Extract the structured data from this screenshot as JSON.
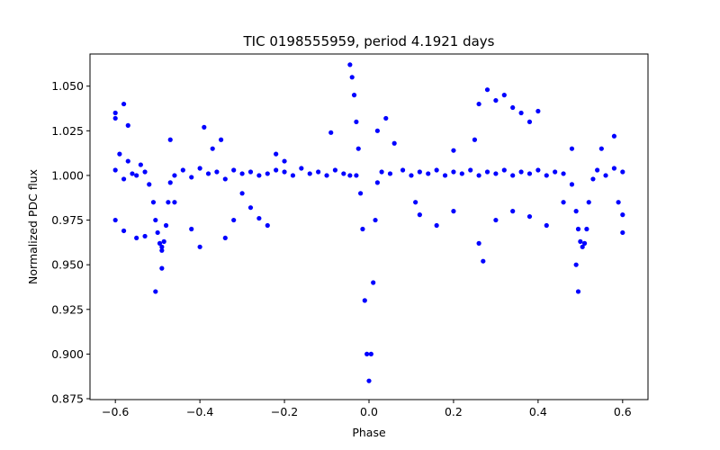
{
  "chart_data": {
    "type": "scatter",
    "title": "TIC 0198555959, period 4.1921 days",
    "xlabel": "Phase",
    "ylabel": "Normalized PDC flux",
    "xlim": [
      -0.66,
      0.66
    ],
    "ylim": [
      0.8745,
      1.068
    ],
    "xticks": [
      -0.6,
      -0.4,
      -0.2,
      0.0,
      0.2,
      0.4,
      0.6
    ],
    "xtick_labels": [
      "−0.6",
      "−0.4",
      "−0.2",
      "0.0",
      "0.2",
      "0.4",
      "0.6"
    ],
    "yticks": [
      0.875,
      0.9,
      0.925,
      0.95,
      0.975,
      1.0,
      1.025,
      1.05
    ],
    "ytick_labels": [
      "0.875",
      "0.900",
      "0.925",
      "0.950",
      "0.975",
      "1.000",
      "1.025",
      "1.050"
    ],
    "grid": false,
    "marker_color": "#0000ff",
    "series": [
      {
        "points": [
          [
            -0.6,
            1.003
          ],
          [
            -0.59,
            1.012
          ],
          [
            -0.58,
            0.998
          ],
          [
            -0.57,
            1.008
          ],
          [
            -0.56,
            1.001
          ],
          [
            -0.55,
            1.0
          ],
          [
            -0.54,
            1.006
          ],
          [
            -0.53,
            1.002
          ],
          [
            -0.52,
            0.995
          ],
          [
            -0.51,
            0.985
          ],
          [
            -0.505,
            0.975
          ],
          [
            -0.5,
            0.968
          ],
          [
            -0.495,
            0.962
          ],
          [
            -0.49,
            0.96
          ],
          [
            -0.485,
            0.963
          ],
          [
            -0.48,
            0.972
          ],
          [
            -0.475,
            0.985
          ],
          [
            -0.47,
            0.996
          ],
          [
            -0.46,
            1.0
          ],
          [
            -0.44,
            1.003
          ],
          [
            -0.42,
            0.999
          ],
          [
            -0.4,
            1.004
          ],
          [
            -0.38,
            1.001
          ],
          [
            -0.36,
            1.002
          ],
          [
            -0.34,
            0.998
          ],
          [
            -0.32,
            1.003
          ],
          [
            -0.3,
            1.001
          ],
          [
            -0.28,
            1.002
          ],
          [
            -0.26,
            1.0
          ],
          [
            -0.24,
            1.001
          ],
          [
            -0.22,
            1.003
          ],
          [
            -0.2,
            1.002
          ],
          [
            -0.18,
            1.0
          ],
          [
            -0.16,
            1.004
          ],
          [
            -0.14,
            1.001
          ],
          [
            -0.12,
            1.002
          ],
          [
            -0.1,
            1.0
          ],
          [
            -0.08,
            1.003
          ],
          [
            -0.06,
            1.001
          ],
          [
            -0.045,
            1.0
          ],
          [
            -0.03,
            1.0
          ],
          [
            -0.02,
            0.99
          ],
          [
            -0.015,
            0.97
          ],
          [
            -0.01,
            0.93
          ],
          [
            -0.005,
            0.9
          ],
          [
            0.0,
            0.885
          ],
          [
            0.005,
            0.9
          ],
          [
            0.01,
            0.94
          ],
          [
            0.015,
            0.975
          ],
          [
            0.02,
            0.996
          ],
          [
            0.03,
            1.002
          ],
          [
            0.05,
            1.001
          ],
          [
            0.08,
            1.003
          ],
          [
            0.1,
            1.0
          ],
          [
            0.12,
            1.002
          ],
          [
            0.14,
            1.001
          ],
          [
            0.16,
            1.003
          ],
          [
            0.18,
            1.0
          ],
          [
            0.2,
            1.002
          ],
          [
            0.22,
            1.001
          ],
          [
            0.24,
            1.003
          ],
          [
            0.26,
            1.0
          ],
          [
            0.28,
            1.002
          ],
          [
            0.3,
            1.001
          ],
          [
            0.32,
            1.003
          ],
          [
            0.34,
            1.0
          ],
          [
            0.36,
            1.002
          ],
          [
            0.38,
            1.001
          ],
          [
            0.4,
            1.003
          ],
          [
            0.42,
            1.0
          ],
          [
            0.44,
            1.002
          ],
          [
            0.46,
            1.001
          ],
          [
            0.48,
            0.995
          ],
          [
            0.49,
            0.98
          ],
          [
            0.495,
            0.97
          ],
          [
            0.5,
            0.963
          ],
          [
            0.505,
            0.96
          ],
          [
            0.51,
            0.962
          ],
          [
            0.515,
            0.97
          ],
          [
            0.52,
            0.985
          ],
          [
            0.53,
            0.998
          ],
          [
            0.54,
            1.003
          ],
          [
            0.56,
            1.0
          ],
          [
            0.58,
            1.004
          ],
          [
            0.6,
            1.002
          ],
          [
            -0.6,
            1.035
          ],
          [
            -0.6,
            1.032
          ],
          [
            -0.58,
            1.04
          ],
          [
            -0.57,
            1.028
          ],
          [
            -0.6,
            0.975
          ],
          [
            -0.58,
            0.969
          ],
          [
            -0.55,
            0.965
          ],
          [
            -0.53,
            0.966
          ],
          [
            -0.505,
            0.935
          ],
          [
            -0.49,
            0.948
          ],
          [
            -0.47,
            1.02
          ],
          [
            -0.46,
            0.985
          ],
          [
            -0.42,
            0.97
          ],
          [
            -0.4,
            0.96
          ],
          [
            -0.39,
            1.027
          ],
          [
            -0.37,
            1.015
          ],
          [
            -0.35,
            1.02
          ],
          [
            -0.34,
            0.965
          ],
          [
            -0.32,
            0.975
          ],
          [
            -0.3,
            0.99
          ],
          [
            -0.28,
            0.982
          ],
          [
            -0.26,
            0.976
          ],
          [
            -0.24,
            0.972
          ],
          [
            -0.22,
            1.012
          ],
          [
            -0.2,
            1.008
          ],
          [
            -0.09,
            1.024
          ],
          [
            -0.045,
            1.062
          ],
          [
            -0.04,
            1.055
          ],
          [
            -0.035,
            1.045
          ],
          [
            -0.03,
            1.03
          ],
          [
            -0.025,
            1.015
          ],
          [
            0.02,
            1.025
          ],
          [
            0.04,
            1.032
          ],
          [
            0.06,
            1.018
          ],
          [
            0.11,
            0.985
          ],
          [
            0.12,
            0.978
          ],
          [
            0.16,
            0.972
          ],
          [
            0.2,
            0.98
          ],
          [
            0.26,
            0.962
          ],
          [
            0.27,
            0.952
          ],
          [
            0.26,
            1.04
          ],
          [
            0.28,
            1.048
          ],
          [
            0.3,
            1.042
          ],
          [
            0.32,
            1.045
          ],
          [
            0.34,
            1.038
          ],
          [
            0.36,
            1.035
          ],
          [
            0.38,
            1.03
          ],
          [
            0.4,
            1.036
          ],
          [
            0.3,
            0.975
          ],
          [
            0.34,
            0.98
          ],
          [
            0.38,
            0.977
          ],
          [
            0.42,
            0.972
          ],
          [
            0.46,
            0.985
          ],
          [
            0.49,
            0.95
          ],
          [
            0.495,
            0.935
          ],
          [
            0.58,
            1.022
          ],
          [
            0.6,
            0.968
          ],
          [
            0.6,
            0.978
          ],
          [
            0.59,
            0.985
          ],
          [
            0.55,
            1.015
          ],
          [
            0.2,
            1.014
          ],
          [
            0.25,
            1.02
          ],
          [
            0.48,
            1.015
          ],
          [
            -0.49,
            0.958
          ]
        ]
      }
    ]
  }
}
